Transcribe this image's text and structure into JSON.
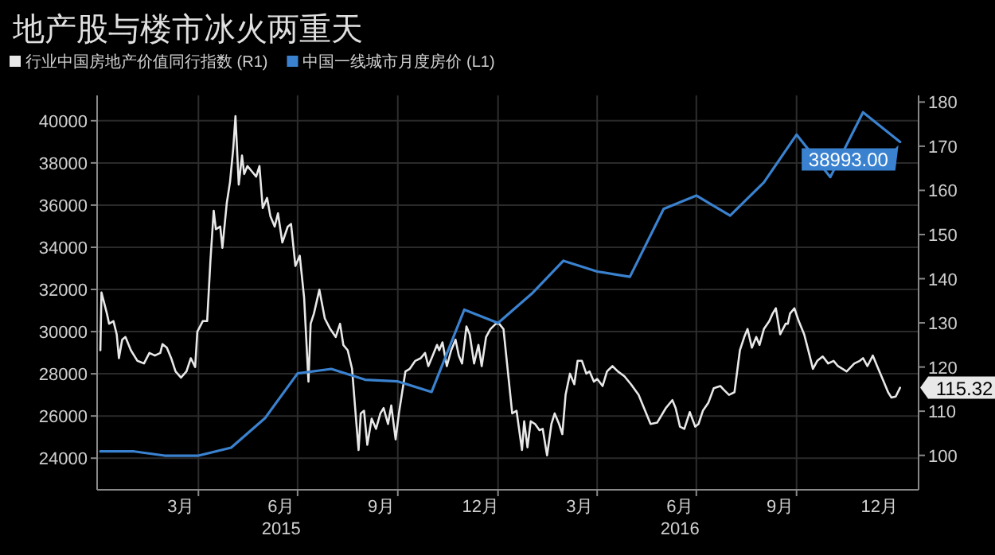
{
  "chart_data": {
    "type": "line",
    "title": "地产股与楼市冰火两重天",
    "legend": "top left",
    "grid": true,
    "xlim": [
      "2014-12-29",
      "2017-01-21"
    ],
    "xticks": [
      {
        "value": "2015-03-16",
        "label": "3月"
      },
      {
        "value": "2015-06-16",
        "label": "6月\n2015"
      },
      {
        "value": "2015-09-16",
        "label": "9月"
      },
      {
        "value": "2015-12-16",
        "label": "12月"
      },
      {
        "value": "2016-03-16",
        "label": "3月"
      },
      {
        "value": "2016-06-16",
        "label": "6月\n2016"
      },
      {
        "value": "2016-09-16",
        "label": "9月"
      },
      {
        "value": "2016-12-16",
        "label": "12月"
      },
      {
        "value": "2015-04-01",
        "label": null
      },
      {
        "value": "2015-07-01",
        "label": null
      },
      {
        "value": "2015-10-01",
        "label": null
      },
      {
        "value": "2016-01-01",
        "label": null
      },
      {
        "value": "2016-04-01",
        "label": null
      },
      {
        "value": "2016-07-01",
        "label": null
      },
      {
        "value": "2016-10-01",
        "label": null
      }
    ],
    "ylim": [
      22500,
      41200
    ],
    "yticks": [
      24000,
      26000,
      28000,
      30000,
      32000,
      34000,
      36000,
      38000,
      40000
    ],
    "y2lim": [
      92.2,
      181.5
    ],
    "y2ticks": [
      100,
      110,
      120,
      130,
      140,
      150,
      160,
      170,
      180
    ],
    "series": [
      {
        "name": "行业中国房地产价值同行指数 (R1)",
        "color": "#e8e8e8",
        "axis": "y2",
        "x": [
          "2015-01-01",
          "2015-01-02",
          "2015-01-07",
          "2015-01-09",
          "2015-01-13",
          "2015-01-16",
          "2015-01-18",
          "2015-01-21",
          "2015-01-24",
          "2015-01-29",
          "2015-02-04",
          "2015-02-10",
          "2015-02-15",
          "2015-02-20",
          "2015-02-25",
          "2015-02-27",
          "2015-03-03",
          "2015-03-07",
          "2015-03-11",
          "2015-03-16",
          "2015-03-21",
          "2015-03-25",
          "2015-03-29",
          "2015-03-31",
          "2015-04-05",
          "2015-04-09",
          "2015-04-12",
          "2015-04-15",
          "2015-04-17",
          "2015-04-21",
          "2015-04-23",
          "2015-04-27",
          "2015-04-30",
          "2015-05-03",
          "2015-05-05",
          "2015-05-08",
          "2015-05-11",
          "2015-05-13",
          "2015-05-16",
          "2015-05-20",
          "2015-05-24",
          "2015-05-27",
          "2015-05-30",
          "2015-06-03",
          "2015-06-06",
          "2015-06-10",
          "2015-06-13",
          "2015-06-17",
          "2015-06-22",
          "2015-06-25",
          "2015-06-29",
          "2015-07-03",
          "2015-07-07",
          "2015-07-11",
          "2015-07-13",
          "2015-07-16",
          "2015-07-21",
          "2015-07-26",
          "2015-07-31",
          "2015-08-05",
          "2015-08-09",
          "2015-08-12",
          "2015-08-16",
          "2015-08-20",
          "2015-08-24",
          "2015-08-26",
          "2015-08-28",
          "2015-08-31",
          "2015-09-03",
          "2015-09-07",
          "2015-09-11",
          "2015-09-15",
          "2015-09-18",
          "2015-09-22",
          "2015-09-25",
          "2015-09-29",
          "2015-10-02",
          "2015-10-05",
          "2015-10-08",
          "2015-10-12",
          "2015-10-17",
          "2015-10-22",
          "2015-10-26",
          "2015-10-29",
          "2015-11-02",
          "2015-11-06",
          "2015-11-08",
          "2015-11-11",
          "2015-11-15",
          "2015-11-19",
          "2015-11-23",
          "2015-11-26",
          "2015-11-29",
          "2015-12-03",
          "2015-12-06",
          "2015-12-10",
          "2015-12-14",
          "2015-12-17",
          "2015-12-21",
          "2015-12-25",
          "2015-12-30",
          "2016-01-02",
          "2016-01-06",
          "2016-01-08",
          "2016-01-11",
          "2016-01-14",
          "2016-01-18",
          "2016-01-20",
          "2016-01-23",
          "2016-01-25",
          "2016-01-28",
          "2016-01-31",
          "2016-02-04",
          "2016-02-08",
          "2016-02-11",
          "2016-02-15",
          "2016-02-19",
          "2016-02-22",
          "2016-02-26",
          "2016-02-29",
          "2016-03-03",
          "2016-03-07",
          "2016-03-11",
          "2016-03-14",
          "2016-03-18",
          "2016-03-22",
          "2016-03-25",
          "2016-03-29",
          "2016-04-01",
          "2016-04-06",
          "2016-04-10",
          "2016-04-15",
          "2016-04-20",
          "2016-04-26",
          "2016-05-02",
          "2016-05-09",
          "2016-05-17",
          "2016-05-20",
          "2016-05-26",
          "2016-06-03",
          "2016-06-09",
          "2016-06-12",
          "2016-06-16",
          "2016-06-20",
          "2016-06-25",
          "2016-06-30",
          "2016-07-03",
          "2016-07-07",
          "2016-07-12",
          "2016-07-17",
          "2016-07-23",
          "2016-07-26",
          "2016-07-31",
          "2016-08-05",
          "2016-08-10",
          "2016-08-14",
          "2016-08-17",
          "2016-08-21",
          "2016-08-25",
          "2016-08-28",
          "2016-09-01",
          "2016-09-06",
          "2016-09-09",
          "2016-09-12",
          "2016-09-16",
          "2016-09-21",
          "2016-09-23",
          "2016-09-25",
          "2016-09-29",
          "2016-10-03",
          "2016-10-08",
          "2016-10-13",
          "2016-10-16",
          "2016-10-20",
          "2016-10-25",
          "2016-10-30",
          "2016-11-04",
          "2016-11-08",
          "2016-11-16",
          "2016-11-23",
          "2016-11-28",
          "2016-12-01",
          "2016-12-05",
          "2016-12-10",
          "2016-12-14",
          "2016-12-20",
          "2016-12-24",
          "2016-12-27",
          "2016-12-31",
          "2017-01-04"
        ],
        "values": [
          123.8,
          136.9,
          132.1,
          129.8,
          130.4,
          127.4,
          122.0,
          126.2,
          126.8,
          123.8,
          121.4,
          120.8,
          123.2,
          122.6,
          123.2,
          125.2,
          124.4,
          122.0,
          119.0,
          117.6,
          119.0,
          122.0,
          120.0,
          128.0,
          130.4,
          130.4,
          144.0,
          155.4,
          151.2,
          151.8,
          147.0,
          157.1,
          161.9,
          169.6,
          176.8,
          161.3,
          167.9,
          163.7,
          165.5,
          164.3,
          163.1,
          165.5,
          156.0,
          158.3,
          154.2,
          151.8,
          154.8,
          148.2,
          151.8,
          152.4,
          142.9,
          145.2,
          135.7,
          116.7,
          129.8,
          132.1,
          137.5,
          131.0,
          128.6,
          126.8,
          129.8,
          125.0,
          123.8,
          119.6,
          107.1,
          101.2,
          109.5,
          110.1,
          102.4,
          108.3,
          106.0,
          109.5,
          110.7,
          107.1,
          111.3,
          103.6,
          109.5,
          114.3,
          119.0,
          119.6,
          121.4,
          122.0,
          123.2,
          120.2,
          122.6,
          125.0,
          123.8,
          125.6,
          120.2,
          123.8,
          126.2,
          122.6,
          120.8,
          129.2,
          127.4,
          120.8,
          125.0,
          120.2,
          126.8,
          128.6,
          129.8,
          129.8,
          128.6,
          123.8,
          116.7,
          109.5,
          110.1,
          106.5,
          101.2,
          107.7,
          101.8,
          107.7,
          107.1,
          105.7,
          106.0,
          100.0,
          107.1,
          109.5,
          107.1,
          104.8,
          113.7,
          118.5,
          116.1,
          121.4,
          121.4,
          118.5,
          119.0,
          116.7,
          117.3,
          115.7,
          119.0,
          120.2,
          119.0,
          117.9,
          116.1,
          113.7,
          108.9,
          107.1,
          107.4,
          110.7,
          112.5,
          110.7,
          106.5,
          106.0,
          109.8,
          106.5,
          107.1,
          110.1,
          111.9,
          115.2,
          115.7,
          114.9,
          113.7,
          114.3,
          123.8,
          126.8,
          128.6,
          124.4,
          126.8,
          125.0,
          128.6,
          130.4,
          132.1,
          133.3,
          127.4,
          129.8,
          129.8,
          132.1,
          133.3,
          130.4,
          127.4,
          122.6,
          119.6,
          121.4,
          122.4,
          120.8,
          121.4,
          120.2,
          119.0,
          120.8,
          121.4,
          122.0,
          120.2,
          122.6,
          120.2,
          116.7,
          114.3,
          113.1,
          113.3,
          115.32
        ],
        "value_labels": [
          null,
          null,
          null,
          null,
          null,
          null,
          null,
          null,
          null,
          null,
          null,
          null,
          null,
          null,
          null,
          null,
          null,
          null,
          null,
          null,
          null,
          null,
          null,
          null,
          null,
          null,
          null,
          null,
          null,
          null,
          null,
          null,
          null,
          null,
          null,
          null,
          null,
          null,
          null,
          null,
          null,
          null,
          null,
          null,
          null,
          null,
          null,
          null,
          null,
          null,
          null,
          null,
          null,
          null,
          null,
          null,
          null,
          null,
          null,
          null,
          null,
          null,
          null,
          null,
          null,
          null,
          null,
          null,
          null,
          null,
          null,
          null,
          null,
          null,
          null,
          null,
          null,
          null,
          null,
          null,
          null,
          null,
          null,
          null,
          null,
          null,
          null,
          null,
          null,
          null,
          null,
          null,
          null,
          null,
          null,
          null,
          null,
          null,
          null,
          null,
          null,
          null,
          null,
          null,
          null,
          null,
          null,
          null,
          null,
          null,
          null,
          null,
          null,
          null,
          null,
          null,
          null,
          null,
          null,
          null,
          null,
          null,
          null,
          null,
          null,
          null,
          null,
          null,
          null,
          null,
          null,
          null,
          null,
          null,
          null,
          null,
          null,
          null,
          null,
          null,
          null,
          null,
          null,
          null,
          null,
          null,
          null,
          null,
          null,
          null,
          null,
          null,
          null,
          null,
          null,
          null,
          null,
          null,
          null,
          null,
          null,
          null,
          null,
          null,
          null,
          null,
          null,
          null,
          null,
          null,
          null,
          null,
          null,
          null,
          null,
          null,
          null,
          null,
          null,
          null,
          null,
          null,
          null,
          null,
          null,
          null,
          null,
          null,
          null,
          "115.32"
        ]
      },
      {
        "name": "中国一线城市月度房价 (L1)",
        "color": "#3a82cf",
        "x": [
          "2015-01-01",
          "2015-02-01",
          "2015-03-01",
          "2015-04-01",
          "2015-05-01",
          "2015-06-01",
          "2015-07-01",
          "2015-08-01",
          "2015-09-01",
          "2015-10-01",
          "2015-11-01",
          "2015-12-01",
          "2016-01-01",
          "2016-02-01",
          "2016-03-01",
          "2016-04-01",
          "2016-05-01",
          "2016-06-01",
          "2016-07-01",
          "2016-08-01",
          "2016-09-01",
          "2016-10-01",
          "2016-11-01",
          "2016-12-01",
          "2017-01-04"
        ],
        "values": [
          24320,
          24320,
          24120,
          24120,
          24500,
          25890,
          28020,
          28230,
          27720,
          27640,
          27140,
          31040,
          30410,
          31800,
          33360,
          32850,
          32600,
          35820,
          36450,
          35500,
          37080,
          39340,
          37330,
          40400,
          38993
        ],
        "value_labels": [
          null,
          null,
          null,
          null,
          null,
          null,
          null,
          null,
          null,
          null,
          null,
          null,
          null,
          null,
          null,
          null,
          null,
          null,
          null,
          null,
          null,
          null,
          null,
          null,
          "38993.00"
        ]
      }
    ]
  }
}
